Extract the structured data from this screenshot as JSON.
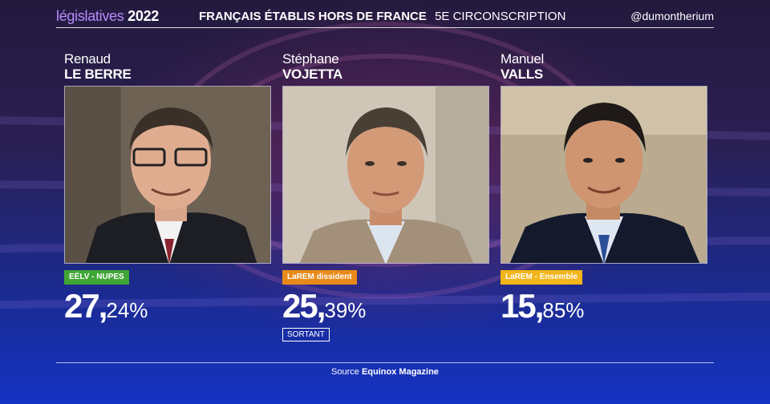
{
  "header": {
    "brand_word": "législatives",
    "brand_year": "2022",
    "title_main": "FRANÇAIS ÉTABLIS HORS DE FRANCE",
    "title_sub": "5E CIRCONSCRIPTION",
    "handle": "@dumontherium"
  },
  "candidates": [
    {
      "first_name": "Renaud",
      "last_name": "LE BERRE",
      "party": "EÉLV - NUPES",
      "party_color": "#3fa535",
      "pct_int": "27,",
      "pct_dec": "24%",
      "photo_bg": "#6e6255",
      "jacket_color": "#1d1d24",
      "hair_color": "#3a3028"
    },
    {
      "first_name": "Stéphane",
      "last_name": "VOJETTA",
      "party": "LaREM dissident",
      "party_color": "#e88a1a",
      "pct_int": "25,",
      "pct_dec": "39%",
      "status": "SORTANT",
      "photo_bg": "#cfc6b8",
      "jacket_color": "#a3907a",
      "hair_color": "#4a3f35"
    },
    {
      "first_name": "Manuel",
      "last_name": "VALLS",
      "party": "LaREM - Ensemble",
      "party_color": "#f2b51a",
      "pct_int": "15,",
      "pct_dec": "85%",
      "photo_bg": "#b9aa90",
      "jacket_color": "#141a2c",
      "hair_color": "#1f1a18"
    }
  ],
  "footer": {
    "source_label": "Source",
    "source_name": "Equinox Magazine"
  }
}
